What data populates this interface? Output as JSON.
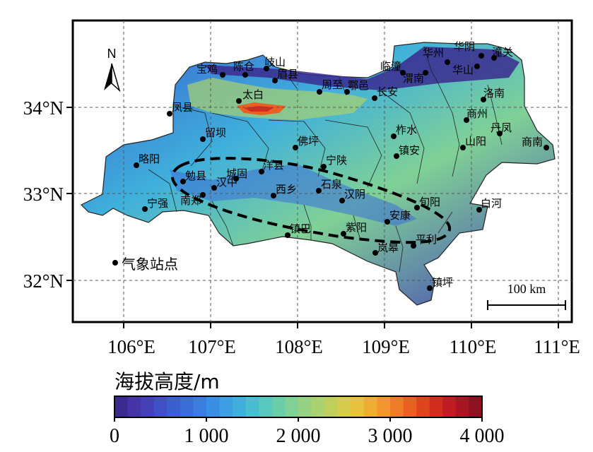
{
  "map": {
    "lon_ticks": [
      "106°E",
      "107°E",
      "108°E",
      "109°E",
      "110°E",
      "111°E"
    ],
    "lat_ticks": [
      "34°N",
      "33°N",
      "32°N"
    ],
    "north_arrow": "N",
    "scale_bar": "100 km",
    "legend_label": "气象站点",
    "stations": [
      {
        "name": "宝鸡"
      },
      {
        "name": "陈仓"
      },
      {
        "name": "岐山"
      },
      {
        "name": "眉县"
      },
      {
        "name": "太白"
      },
      {
        "name": "周至"
      },
      {
        "name": "鄠邑"
      },
      {
        "name": "长安"
      },
      {
        "name": "临潼"
      },
      {
        "name": "渭南"
      },
      {
        "name": "华州"
      },
      {
        "name": "华阴"
      },
      {
        "name": "华山"
      },
      {
        "name": "潼关"
      },
      {
        "name": "洛南"
      },
      {
        "name": "商州"
      },
      {
        "name": "丹凤"
      },
      {
        "name": "商南"
      },
      {
        "name": "山阳"
      },
      {
        "name": "镇安"
      },
      {
        "name": "柞水"
      },
      {
        "name": "凤县"
      },
      {
        "name": "留坝"
      },
      {
        "name": "佛坪"
      },
      {
        "name": "宁陕"
      },
      {
        "name": "略阳"
      },
      {
        "name": "勉县"
      },
      {
        "name": "城固"
      },
      {
        "name": "洋县"
      },
      {
        "name": "汉中"
      },
      {
        "name": "宁强"
      },
      {
        "name": "南郑"
      },
      {
        "name": "西乡"
      },
      {
        "name": "石泉"
      },
      {
        "name": "汉阴"
      },
      {
        "name": "旬阳"
      },
      {
        "name": "白河"
      },
      {
        "name": "安康"
      },
      {
        "name": "镇巴"
      },
      {
        "name": "紫阳"
      },
      {
        "name": "岚皋"
      },
      {
        "name": "平利"
      },
      {
        "name": "镇坪"
      }
    ]
  },
  "colorbar": {
    "title": "海拔高度/m",
    "ticks": [
      "0",
      "1 000",
      "2 000",
      "3 000",
      "4 000"
    ],
    "min": 0,
    "max": 4000,
    "colors": [
      "#3b2a8f",
      "#4534a6",
      "#4440b8",
      "#3f4fc6",
      "#3b5ed0",
      "#3a6dd8",
      "#3a7ddf",
      "#3a8ee3",
      "#3c9fe2",
      "#3fb0dc",
      "#48bed0",
      "#58c8bf",
      "#6bceab",
      "#80d196",
      "#95d282",
      "#aad26e",
      "#c0cf5c",
      "#d5cb4c",
      "#e8c13e",
      "#f0ad34",
      "#f2952d",
      "#ef7c28",
      "#e86123",
      "#de451f",
      "#d22c1f",
      "#c01d22",
      "#a81623",
      "#8e1122"
    ]
  }
}
